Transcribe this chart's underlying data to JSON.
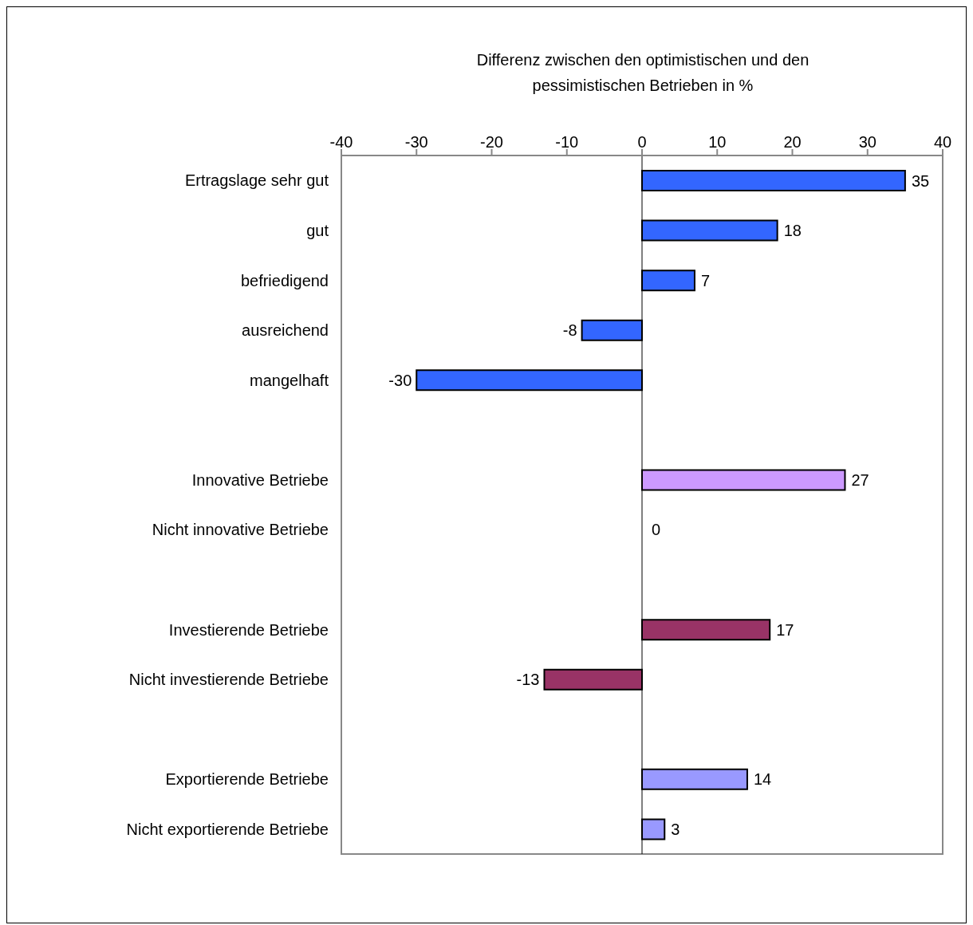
{
  "chart_data": {
    "type": "bar",
    "orientation": "horizontal",
    "xlabel": "Differenz zwischen den optimistischen und den pessimistischen Betrieben in %",
    "categories": [
      "Ertragslage sehr gut",
      "gut",
      "befriedigend",
      "ausreichend",
      "mangelhaft",
      null,
      "Innovative Betriebe",
      "Nicht innovative Betriebe",
      null,
      "Investierende Betriebe",
      "Nicht investierende Betriebe",
      null,
      "Exportierende Betriebe",
      "Nicht exportierende Betriebe"
    ],
    "values": [
      35,
      18,
      7,
      -8,
      -30,
      null,
      27,
      0,
      null,
      17,
      -13,
      null,
      14,
      3
    ],
    "colors": [
      "#3366ff",
      "#3366ff",
      "#3366ff",
      "#3366ff",
      "#3366ff",
      "#3366ff",
      "#cc99ff",
      "#cc99ff",
      "#993366",
      "#993366",
      "#993366",
      "#9999ff",
      "#9999ff",
      "#9999ff"
    ],
    "xlim": [
      -40,
      40
    ],
    "xticks": [
      -40,
      -30,
      -20,
      -10,
      0,
      10,
      20,
      30,
      40
    ],
    "data_labels": true
  }
}
